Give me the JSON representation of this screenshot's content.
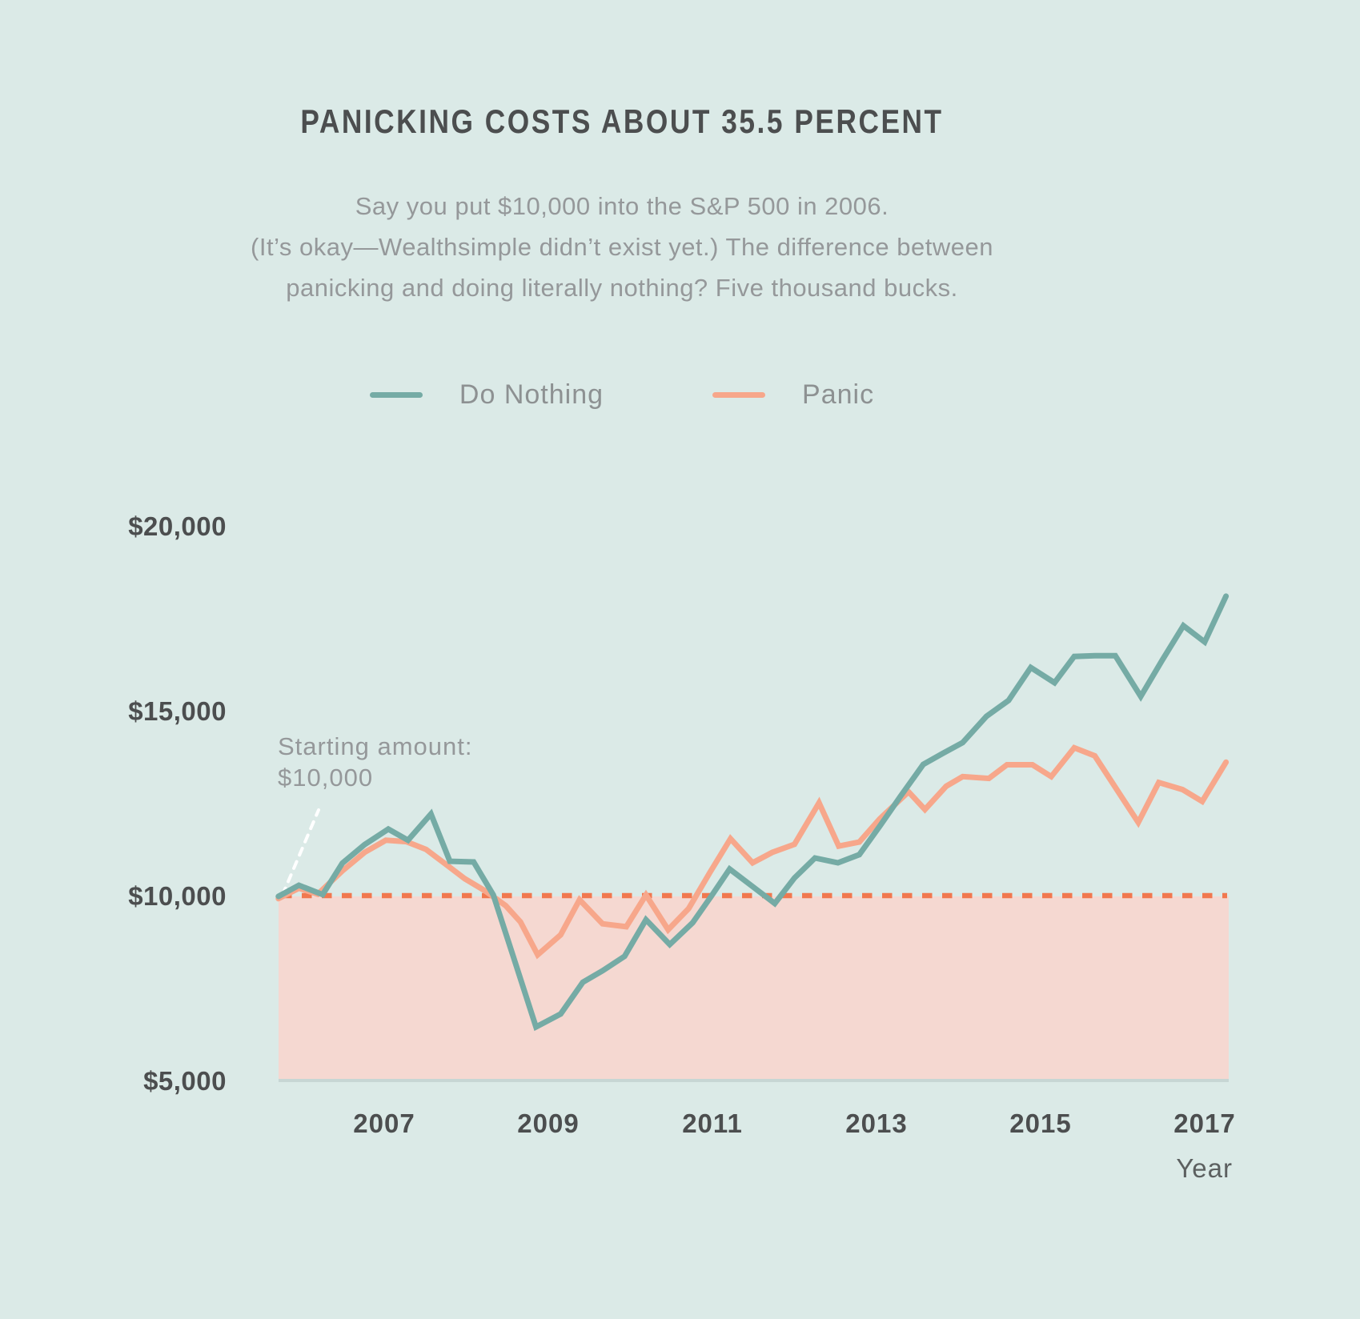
{
  "page": {
    "background": "#dbeae7"
  },
  "header": {
    "title": "PANICKING COSTS ABOUT 35.5 PERCENT",
    "subtitle_lines": [
      "Say you put $10,000 into the S&P 500 in 2006.",
      "(It’s okay—Wealthsimple didn’t exist yet.) The difference between",
      "panicking and doing literally nothing? Five thousand bucks."
    ]
  },
  "legend": [
    {
      "label": "Do Nothing",
      "color": "#75aba5"
    },
    {
      "label": "Panic",
      "color": "#f7a78b"
    }
  ],
  "annotation": {
    "line1": "Starting amount:",
    "line2": "$10,000"
  },
  "axes": {
    "y_ticks": [
      {
        "label": "$20,000",
        "value": 20000
      },
      {
        "label": "$15,000",
        "value": 15000
      },
      {
        "label": "$10,000",
        "value": 10000
      },
      {
        "label": "$5,000",
        "value": 5000
      }
    ],
    "x_ticks": [
      {
        "label": "2007",
        "year": 2007
      },
      {
        "label": "2009",
        "year": 2009
      },
      {
        "label": "2011",
        "year": 2011
      },
      {
        "label": "2013",
        "year": 2013
      },
      {
        "label": "2015",
        "year": 2015
      },
      {
        "label": "2017",
        "year": 2017
      }
    ],
    "x_axis_title": "Year"
  },
  "colors": {
    "background": "#dbeae7",
    "title_text": "#4c4e4f",
    "subtitle_text": "#95989a",
    "tick_text": "#4c4e4f",
    "legend_text": "#8d9192",
    "annotation_text": "#95989a",
    "year_text": "#5c6060",
    "do_nothing_line": "#75aba5",
    "panic_line": "#f7a78b",
    "baseline_dash": "#f1784f",
    "shortfall_fill": "#f5d8d1",
    "shortfall_edge": "#c7d6d4",
    "pointer_dash": "#ffffff"
  },
  "chart_data": {
    "type": "line",
    "title": "PANICKING COSTS ABOUT 35.5 PERCENT",
    "subtitle": "Say you put $10,000 into the S&P 500 in 2006. (It’s okay—Wealthsimple didn’t exist yet.) The difference between panicking and doing literally nothing? Five thousand bucks.",
    "xlabel": "Year",
    "ylabel": "",
    "x_range": [
      2005.71,
      2017.26
    ],
    "ylim": [
      5000,
      20000
    ],
    "grid": false,
    "legend_position": "top-center",
    "baseline": {
      "value": 10000,
      "style": "dashed",
      "color": "#f1784f",
      "label": "Starting amount: $10,000"
    },
    "shaded_region": {
      "y_from": 5000,
      "y_to": 10000,
      "color": "#f5d8d1",
      "meaning": "below starting amount"
    },
    "series": [
      {
        "name": "Do Nothing",
        "color": "#75aba5",
        "points": [
          [
            2005.71,
            10000
          ],
          [
            2005.96,
            10300
          ],
          [
            2006.25,
            10050
          ],
          [
            2006.49,
            10900
          ],
          [
            2006.76,
            11400
          ],
          [
            2007.05,
            11820
          ],
          [
            2007.29,
            11520
          ],
          [
            2007.57,
            12230
          ],
          [
            2007.8,
            10950
          ],
          [
            2008.09,
            10930
          ],
          [
            2008.33,
            10040
          ],
          [
            2008.58,
            8330
          ],
          [
            2008.85,
            6470
          ],
          [
            2009.15,
            6820
          ],
          [
            2009.42,
            7680
          ],
          [
            2009.66,
            7990
          ],
          [
            2009.93,
            8380
          ],
          [
            2010.19,
            9370
          ],
          [
            2010.48,
            8700
          ],
          [
            2010.76,
            9290
          ],
          [
            2010.99,
            10020
          ],
          [
            2011.21,
            10740
          ],
          [
            2011.47,
            10300
          ],
          [
            2011.76,
            9810
          ],
          [
            2012.0,
            10500
          ],
          [
            2012.25,
            11040
          ],
          [
            2012.53,
            10910
          ],
          [
            2012.79,
            11130
          ],
          [
            2013.04,
            11900
          ],
          [
            2013.29,
            12700
          ],
          [
            2013.57,
            13570
          ],
          [
            2013.81,
            13870
          ],
          [
            2014.05,
            14160
          ],
          [
            2014.34,
            14870
          ],
          [
            2014.61,
            15300
          ],
          [
            2014.88,
            16190
          ],
          [
            2015.17,
            15780
          ],
          [
            2015.41,
            16490
          ],
          [
            2015.66,
            16510
          ],
          [
            2015.91,
            16510
          ],
          [
            2016.22,
            15410
          ],
          [
            2016.48,
            16380
          ],
          [
            2016.74,
            17320
          ],
          [
            2017.0,
            16880
          ],
          [
            2017.26,
            18120
          ]
        ]
      },
      {
        "name": "Panic",
        "color": "#f7a78b",
        "points": [
          [
            2005.71,
            9940
          ],
          [
            2005.96,
            10220
          ],
          [
            2006.19,
            10060
          ],
          [
            2006.49,
            10690
          ],
          [
            2006.76,
            11190
          ],
          [
            2007.02,
            11520
          ],
          [
            2007.27,
            11480
          ],
          [
            2007.51,
            11270
          ],
          [
            2007.75,
            10870
          ],
          [
            2007.98,
            10480
          ],
          [
            2008.23,
            10150
          ],
          [
            2008.48,
            9750
          ],
          [
            2008.66,
            9310
          ],
          [
            2008.87,
            8420
          ],
          [
            2009.15,
            8960
          ],
          [
            2009.38,
            9910
          ],
          [
            2009.66,
            9260
          ],
          [
            2009.95,
            9180
          ],
          [
            2010.19,
            10040
          ],
          [
            2010.46,
            9100
          ],
          [
            2010.71,
            9670
          ],
          [
            2010.97,
            10650
          ],
          [
            2011.22,
            11560
          ],
          [
            2011.49,
            10910
          ],
          [
            2011.73,
            11190
          ],
          [
            2012.0,
            11410
          ],
          [
            2012.3,
            12530
          ],
          [
            2012.54,
            11360
          ],
          [
            2012.79,
            11470
          ],
          [
            2013.04,
            12100
          ],
          [
            2013.39,
            12830
          ],
          [
            2013.59,
            12350
          ],
          [
            2013.85,
            12980
          ],
          [
            2014.05,
            13240
          ],
          [
            2014.37,
            13190
          ],
          [
            2014.59,
            13560
          ],
          [
            2014.9,
            13560
          ],
          [
            2015.13,
            13240
          ],
          [
            2015.41,
            14020
          ],
          [
            2015.66,
            13800
          ],
          [
            2016.19,
            12000
          ],
          [
            2016.44,
            13080
          ],
          [
            2016.73,
            12890
          ],
          [
            2016.97,
            12570
          ],
          [
            2017.26,
            13630
          ]
        ]
      }
    ]
  }
}
